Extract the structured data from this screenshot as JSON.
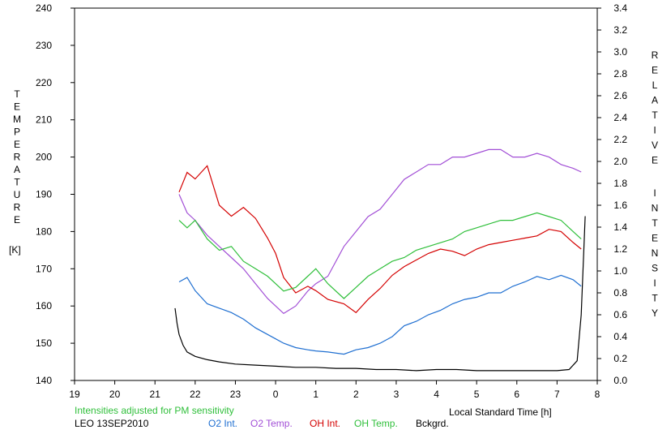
{
  "chart_data": {
    "type": "line",
    "title": "",
    "note": "Intensities adjusted for PM sensitivity",
    "station": "LEO 13SEP2010",
    "xlabel": "Local Standard Time [h]",
    "ylabel_left": "TEMPERATURE",
    "ylabel_left_unit": "[K]",
    "ylabel_right": "RELATIVE INTENSITY",
    "x_ticks": [
      "19",
      "20",
      "21",
      "22",
      "23",
      "0",
      "1",
      "2",
      "3",
      "4",
      "5",
      "6",
      "7",
      "8"
    ],
    "x_range_hours_since_19": [
      0,
      13
    ],
    "y_left_ticks": [
      "140",
      "150",
      "160",
      "170",
      "180",
      "190",
      "200",
      "210",
      "220",
      "230",
      "240"
    ],
    "y_left_range": [
      140,
      240
    ],
    "y_right_ticks": [
      "0.0",
      "0.2",
      "0.4",
      "0.6",
      "0.8",
      "1.0",
      "1.2",
      "1.4",
      "1.6",
      "1.8",
      "2.0",
      "2.2",
      "2.4",
      "2.6",
      "2.8",
      "3.0",
      "3.2",
      "3.4"
    ],
    "y_right_range": [
      0,
      3.4
    ],
    "grid": false,
    "legend_position": "bottom",
    "series": [
      {
        "name": "O2 Int.",
        "axis": "right",
        "color": "#1f6fd1",
        "x": [
          21.6,
          21.8,
          22.0,
          22.3,
          22.6,
          22.9,
          23.2,
          23.5,
          23.8,
          24.0,
          24.2,
          24.5,
          24.8,
          25.0,
          25.3,
          25.7,
          26.0,
          26.3,
          26.6,
          26.9,
          27.2,
          27.5,
          27.8,
          28.1,
          28.4,
          28.7,
          29.0,
          29.3,
          29.6,
          29.9,
          30.2,
          30.5,
          30.8,
          31.1,
          31.4,
          31.6
        ],
        "y": [
          0.9,
          0.94,
          0.82,
          0.7,
          0.66,
          0.62,
          0.56,
          0.48,
          0.42,
          0.38,
          0.34,
          0.3,
          0.28,
          0.27,
          0.26,
          0.24,
          0.28,
          0.3,
          0.34,
          0.4,
          0.5,
          0.54,
          0.6,
          0.64,
          0.7,
          0.74,
          0.76,
          0.8,
          0.8,
          0.86,
          0.9,
          0.95,
          0.92,
          0.96,
          0.92,
          0.86
        ]
      },
      {
        "name": "O2 Temp.",
        "axis": "left",
        "color": "#a24fd6",
        "x": [
          21.6,
          21.8,
          22.0,
          22.3,
          22.6,
          22.9,
          23.2,
          23.5,
          23.8,
          24.0,
          24.2,
          24.5,
          24.8,
          25.0,
          25.3,
          25.7,
          26.0,
          26.3,
          26.6,
          26.9,
          27.2,
          27.5,
          27.8,
          28.1,
          28.4,
          28.7,
          29.0,
          29.3,
          29.6,
          29.9,
          30.2,
          30.5,
          30.8,
          31.1,
          31.4,
          31.6
        ],
        "y": [
          190,
          185,
          183,
          179,
          176,
          173,
          170,
          166,
          162,
          160,
          158,
          160,
          164,
          166,
          168,
          176,
          180,
          184,
          186,
          190,
          194,
          196,
          198,
          198,
          200,
          200,
          201,
          202,
          202,
          200,
          200,
          201,
          200,
          198,
          197,
          196
        ]
      },
      {
        "name": "OH Int.",
        "axis": "right",
        "color": "#d40000",
        "x": [
          21.6,
          21.8,
          22.0,
          22.3,
          22.6,
          22.9,
          23.2,
          23.5,
          23.8,
          24.0,
          24.2,
          24.5,
          24.8,
          25.0,
          25.3,
          25.7,
          26.0,
          26.3,
          26.6,
          26.9,
          27.2,
          27.5,
          27.8,
          28.1,
          28.4,
          28.7,
          29.0,
          29.3,
          29.6,
          29.9,
          30.2,
          30.5,
          30.8,
          31.1,
          31.4,
          31.6
        ],
        "y": [
          1.72,
          1.9,
          1.84,
          1.96,
          1.6,
          1.5,
          1.58,
          1.48,
          1.3,
          1.16,
          0.94,
          0.8,
          0.86,
          0.82,
          0.74,
          0.7,
          0.62,
          0.74,
          0.84,
          0.96,
          1.04,
          1.1,
          1.16,
          1.2,
          1.18,
          1.14,
          1.2,
          1.24,
          1.26,
          1.28,
          1.3,
          1.32,
          1.38,
          1.36,
          1.26,
          1.2
        ]
      },
      {
        "name": "OH Temp.",
        "axis": "left",
        "color": "#2fbf3a",
        "x": [
          21.6,
          21.8,
          22.0,
          22.3,
          22.6,
          22.9,
          23.2,
          23.5,
          23.8,
          24.0,
          24.2,
          24.5,
          24.8,
          25.0,
          25.3,
          25.7,
          26.0,
          26.3,
          26.6,
          26.9,
          27.2,
          27.5,
          27.8,
          28.1,
          28.4,
          28.7,
          29.0,
          29.3,
          29.6,
          29.9,
          30.2,
          30.5,
          30.8,
          31.1,
          31.4,
          31.6
        ],
        "y": [
          183,
          181,
          183,
          178,
          175,
          176,
          172,
          170,
          168,
          166,
          164,
          165,
          168,
          170,
          166,
          162,
          165,
          168,
          170,
          172,
          173,
          175,
          176,
          177,
          178,
          180,
          181,
          182,
          183,
          183,
          184,
          185,
          184,
          183,
          180,
          178
        ]
      },
      {
        "name": "Bckgrd.",
        "axis": "right",
        "color": "#000000",
        "x": [
          21.5,
          21.55,
          21.6,
          21.7,
          21.8,
          22.0,
          22.3,
          22.6,
          23.0,
          23.5,
          24.0,
          24.5,
          25.0,
          25.5,
          26.0,
          26.5,
          27.0,
          27.5,
          28.0,
          28.5,
          29.0,
          29.5,
          30.0,
          30.5,
          31.0,
          31.3,
          31.5,
          31.6,
          31.7
        ],
        "y": [
          0.66,
          0.52,
          0.42,
          0.32,
          0.26,
          0.22,
          0.19,
          0.17,
          0.15,
          0.14,
          0.13,
          0.12,
          0.12,
          0.11,
          0.11,
          0.1,
          0.1,
          0.09,
          0.1,
          0.1,
          0.09,
          0.09,
          0.09,
          0.09,
          0.09,
          0.1,
          0.18,
          0.6,
          1.5
        ]
      }
    ]
  }
}
